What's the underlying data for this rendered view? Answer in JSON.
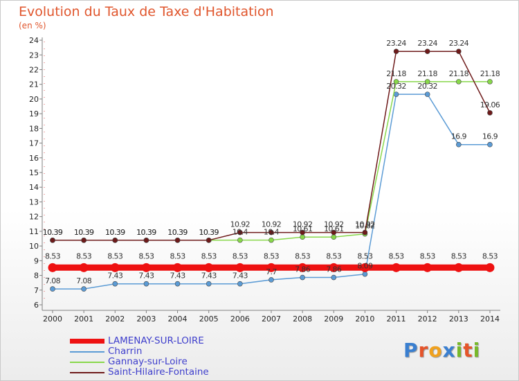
{
  "title": "Evolution du Taux de Taxe d'Habitation",
  "unit": "(en %)",
  "logo": "Proxiti",
  "colors": {
    "title": "#e0552c",
    "axis": "#808080",
    "tick_label": "#222222",
    "value_label": "#333333",
    "legend_text": "#3e3ecc"
  },
  "chart_data": {
    "type": "line",
    "title": "Evolution du Taux de Taxe d'Habitation",
    "ylabel": "(en %)",
    "xlabel": "",
    "x": [
      "2000",
      "2001",
      "2002",
      "2003",
      "2004",
      "2005",
      "2006",
      "2007",
      "2008",
      "2009",
      "2010",
      "2011",
      "2012",
      "2013",
      "2014"
    ],
    "yticks": [
      6,
      7,
      8,
      9,
      10,
      11,
      12,
      13,
      14,
      15,
      16,
      17,
      18,
      19,
      20,
      21,
      22,
      23,
      24
    ],
    "ylim": [
      6,
      24
    ],
    "grid": false,
    "legend_position": "bottom-left",
    "series": [
      {
        "name": "LAMENAY-SUR-LOIRE",
        "color": "#ee1111",
        "style": "thick",
        "values": [
          8.53,
          8.53,
          8.53,
          8.53,
          8.53,
          8.53,
          8.53,
          8.53,
          8.53,
          8.53,
          8.53,
          8.53,
          8.53,
          8.53,
          8.53
        ],
        "labels": [
          "8.53",
          "8.53",
          "8.53",
          "8.53",
          "8.53",
          "8.53",
          "8.53",
          "8.53",
          "8.53",
          "8.53",
          "8.53",
          "8.53",
          "8.53",
          "8.53",
          "8.53"
        ]
      },
      {
        "name": "Charrin",
        "color": "#5b9bd5",
        "style": "thin",
        "values": [
          7.08,
          7.08,
          7.43,
          7.43,
          7.43,
          7.43,
          7.43,
          7.7,
          7.86,
          7.86,
          8.09,
          20.32,
          20.32,
          16.9,
          16.9
        ],
        "labels": [
          "7.08",
          "7.08",
          "7.43",
          "7.43",
          "7.43",
          "7.43",
          "7.43",
          "7.7",
          "7.86",
          "7.86",
          "8.09",
          "20.32",
          "20.32",
          "16.9",
          "16.9"
        ]
      },
      {
        "name": "Gannay-sur-Loire",
        "color": "#88d84a",
        "style": "thin",
        "values": [
          10.39,
          10.39,
          10.39,
          10.39,
          10.39,
          10.39,
          10.4,
          10.4,
          10.61,
          10.61,
          10.82,
          21.18,
          21.18,
          21.18,
          21.18
        ],
        "labels": [
          "10.39",
          "10.39",
          "10.39",
          "10.39",
          "10.39",
          "10.39",
          "10.4",
          "10.4",
          "10.61",
          "10.61",
          "10.82",
          "21.18",
          "21.18",
          "21.18",
          "21.18"
        ]
      },
      {
        "name": "Saint-Hilaire-Fontaine",
        "color": "#6e1a1a",
        "style": "thin",
        "values": [
          10.39,
          10.39,
          10.39,
          10.39,
          10.39,
          10.39,
          10.92,
          10.92,
          10.92,
          10.92,
          10.92,
          23.24,
          23.24,
          23.24,
          19.06
        ],
        "labels": [
          "10.39",
          "10.39",
          "10.39",
          "10.39",
          "10.39",
          "10.39",
          "10.92",
          "10.92",
          "10.92",
          "10.92",
          "10.92",
          "23.24",
          "23.24",
          "23.24",
          "19.06"
        ]
      }
    ]
  }
}
